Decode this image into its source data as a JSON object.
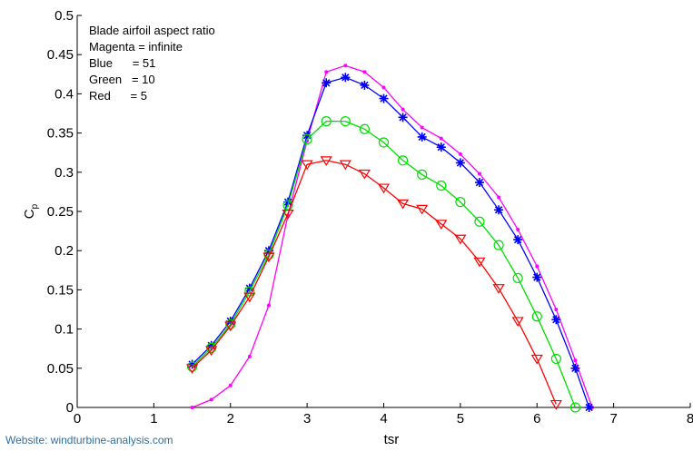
{
  "chart_data": {
    "type": "line",
    "xlabel": "tsr",
    "ylabel": "C",
    "ylabel_subscript": "p",
    "xlim": [
      0,
      8
    ],
    "ylim": [
      0,
      0.5
    ],
    "xticks": [
      "0",
      "1",
      "2",
      "3",
      "4",
      "5",
      "6",
      "7",
      "8"
    ],
    "yticks": [
      "0",
      "0.05",
      "0.1",
      "0.15",
      "0.2",
      "0.25",
      "0.3",
      "0.35",
      "0.4",
      "0.45",
      "0.5"
    ],
    "grid": false,
    "legend_placement": "top-left",
    "annotation": [
      "Blade airfoil aspect ratio",
      "Magenta = infinite",
      "Blue      = 51",
      "Green   = 10",
      "Red      = 5"
    ],
    "series": [
      {
        "color": "#ff00ff",
        "marker": "dot",
        "x": [
          1.5,
          1.75,
          2.0,
          2.25,
          2.5,
          2.75,
          3.0,
          3.25,
          3.5,
          3.75,
          4.0,
          4.25,
          4.5,
          4.75,
          5.0,
          5.25,
          5.5,
          5.75,
          6.0,
          6.25,
          6.5,
          6.72
        ],
        "y": [
          0.0,
          0.01,
          0.028,
          0.065,
          0.13,
          0.245,
          0.34,
          0.428,
          0.436,
          0.428,
          0.408,
          0.38,
          0.357,
          0.343,
          0.323,
          0.298,
          0.268,
          0.227,
          0.18,
          0.125,
          0.06,
          0.0
        ]
      },
      {
        "color": "#0000ff",
        "marker": "star",
        "x": [
          1.5,
          1.75,
          2.0,
          2.25,
          2.5,
          2.75,
          3.0,
          3.25,
          3.5,
          3.75,
          4.0,
          4.25,
          4.5,
          4.75,
          5.0,
          5.25,
          5.5,
          5.75,
          6.0,
          6.25,
          6.5,
          6.68
        ],
        "y": [
          0.055,
          0.079,
          0.11,
          0.152,
          0.2,
          0.262,
          0.347,
          0.414,
          0.421,
          0.411,
          0.394,
          0.37,
          0.345,
          0.332,
          0.312,
          0.287,
          0.252,
          0.214,
          0.166,
          0.112,
          0.05,
          0.0
        ]
      },
      {
        "color": "#00dd00",
        "marker": "circle",
        "x": [
          1.5,
          1.75,
          2.0,
          2.25,
          2.5,
          2.75,
          3.0,
          3.25,
          3.5,
          3.75,
          4.0,
          4.25,
          4.5,
          4.75,
          5.0,
          5.25,
          5.5,
          5.75,
          6.0,
          6.25,
          6.5
        ],
        "y": [
          0.052,
          0.076,
          0.106,
          0.148,
          0.195,
          0.258,
          0.342,
          0.365,
          0.365,
          0.355,
          0.338,
          0.315,
          0.297,
          0.283,
          0.262,
          0.237,
          0.207,
          0.165,
          0.116,
          0.062,
          0.0
        ]
      },
      {
        "color": "#ff0000",
        "marker": "triangle-down",
        "x": [
          1.5,
          1.75,
          2.0,
          2.25,
          2.5,
          2.75,
          3.0,
          3.25,
          3.5,
          3.75,
          4.0,
          4.25,
          4.5,
          4.75,
          5.0,
          5.25,
          5.5,
          5.75,
          6.0,
          6.25
        ],
        "y": [
          0.05,
          0.073,
          0.104,
          0.141,
          0.192,
          0.247,
          0.31,
          0.315,
          0.31,
          0.298,
          0.28,
          0.26,
          0.253,
          0.234,
          0.215,
          0.186,
          0.152,
          0.11,
          0.062,
          0.004
        ]
      }
    ]
  },
  "footer": {
    "website": "Website:  windturbine-analysis.com"
  }
}
